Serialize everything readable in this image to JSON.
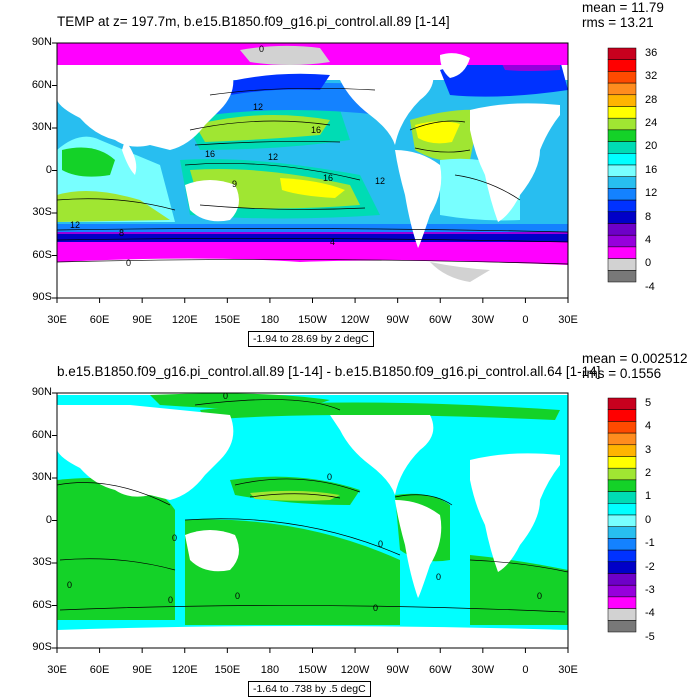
{
  "panels": [
    {
      "title": "TEMP at z= 197.7m, b.e15.B1850.f09_g16.pi_control.all.89 [1-14]",
      "mean_text": "mean = 11.79",
      "rms_text": "rms = 13.21",
      "range_text": "-1.94 to 28.69 by 2 degC",
      "colorbar_labels": [
        "36",
        "32",
        "28",
        "24",
        "20",
        "16",
        "12",
        "8",
        "4",
        "0",
        "-4"
      ],
      "colorbar_colors": [
        "#c8001e",
        "#ff0000",
        "#ff4a00",
        "#ff8c1e",
        "#ffb400",
        "#ffff00",
        "#a0e632",
        "#14d228",
        "#00dcb4",
        "#00ffff",
        "#78ffff",
        "#28bef0",
        "#1482ff",
        "#0032ff",
        "#0000c8",
        "#6e00c8",
        "#9600dc",
        "#ff00ff",
        "#d2d2d2",
        "#787878"
      ],
      "contour_labels": [
        "0",
        "16",
        "12",
        "12",
        "16",
        "12",
        "12",
        "8",
        "4",
        "0",
        "9",
        "16"
      ]
    },
    {
      "title": "b.e15.B1850.f09_g16.pi_control.all.89 [1-14] - b.e15.B1850.f09_g16.pi_control.all.64 [1-14]",
      "mean_text": "mean = 0.002512",
      "rms_text": "rms = 0.1556",
      "range_text": "-1.64 to .738 by .5 degC",
      "colorbar_labels": [
        "5",
        "4",
        "3",
        "2",
        "1",
        "0",
        "-1",
        "-2",
        "-3",
        "-4",
        "-5"
      ],
      "colorbar_colors": [
        "#c8001e",
        "#ff0000",
        "#ff4a00",
        "#ff8c1e",
        "#ffb400",
        "#ffff00",
        "#a0e632",
        "#14d228",
        "#00dcb4",
        "#00ffff",
        "#78ffff",
        "#28bef0",
        "#1482ff",
        "#0032ff",
        "#0000c8",
        "#6e00c8",
        "#9600dc",
        "#ff00ff",
        "#d2d2d2",
        "#787878"
      ],
      "contour_labels": [
        "0",
        "0",
        "0",
        "0",
        "0",
        "0",
        "0",
        "0",
        "0",
        "0"
      ]
    }
  ],
  "lat_labels": [
    "90N",
    "60N",
    "30N",
    "0",
    "30S",
    "60S",
    "90S"
  ],
  "lon_labels": [
    "30E",
    "60E",
    "90E",
    "120E",
    "150E",
    "180",
    "150W",
    "120W",
    "90W",
    "60W",
    "30W",
    "0",
    "30E"
  ]
}
